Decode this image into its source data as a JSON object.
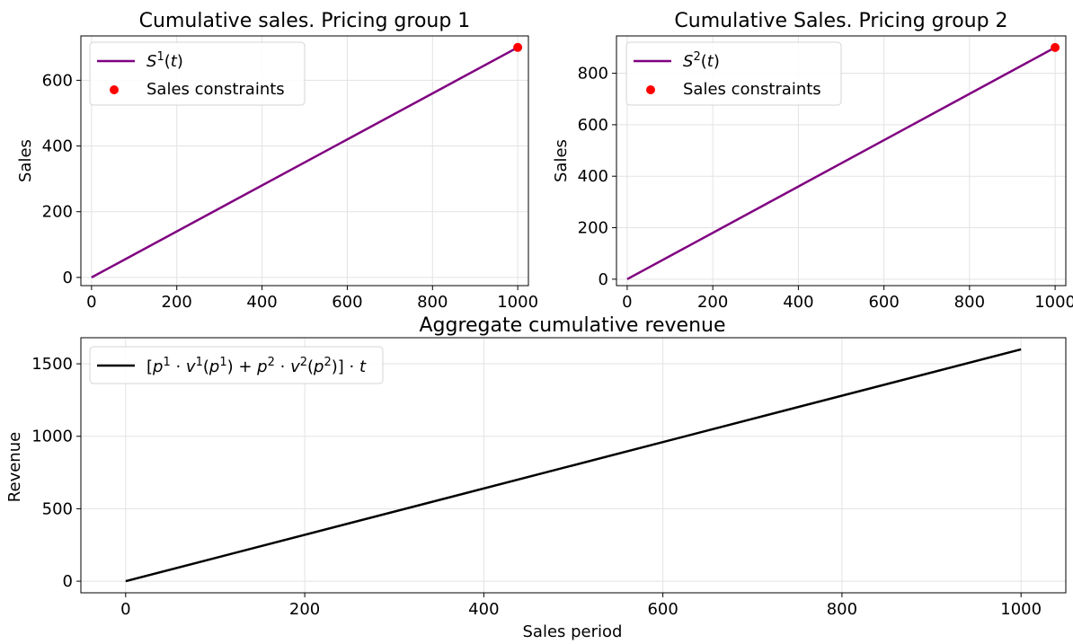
{
  "chart_data": [
    {
      "type": "line",
      "title": "Cumulative sales. Pricing group 1",
      "xlabel": "",
      "ylabel": "Sales",
      "xlim": [
        -25,
        1025
      ],
      "ylim": [
        -25,
        735
      ],
      "xticks": [
        0,
        200,
        400,
        600,
        800,
        1000
      ],
      "yticks": [
        0,
        200,
        400,
        600
      ],
      "grid": true,
      "legend_position": "top-left",
      "series": [
        {
          "name": "S¹(t)",
          "type": "line",
          "color": "#800080",
          "x": [
            0,
            1000
          ],
          "y": [
            0,
            700
          ]
        },
        {
          "name": "Sales constraints",
          "type": "scatter",
          "color": "#ff0000",
          "x": [
            1000
          ],
          "y": [
            700
          ]
        }
      ]
    },
    {
      "type": "line",
      "title": "Cumulative Sales. Pricing group 2",
      "xlabel": "",
      "ylabel": "Sales",
      "xlim": [
        -25,
        1025
      ],
      "ylim": [
        -25,
        945
      ],
      "xticks": [
        0,
        200,
        400,
        600,
        800,
        1000
      ],
      "yticks": [
        0,
        200,
        400,
        600,
        800
      ],
      "grid": true,
      "legend_position": "top-left",
      "series": [
        {
          "name": "S²(t)",
          "type": "line",
          "color": "#800080",
          "x": [
            0,
            1000
          ],
          "y": [
            0,
            900
          ]
        },
        {
          "name": "Sales constraints",
          "type": "scatter",
          "color": "#ff0000",
          "x": [
            1000
          ],
          "y": [
            900
          ]
        }
      ]
    },
    {
      "type": "line",
      "title": "Aggregate cumulative revenue",
      "xlabel": "Sales period",
      "ylabel": "Revenue",
      "xlim": [
        -50,
        1050
      ],
      "ylim": [
        -80,
        1680
      ],
      "xticks": [
        0,
        200,
        400,
        600,
        800,
        1000
      ],
      "yticks": [
        0,
        500,
        1000,
        1500
      ],
      "grid": true,
      "legend_position": "top-left",
      "series": [
        {
          "name": "[p¹·v¹(p¹) + p²·v²(p²)]·t",
          "type": "line",
          "color": "#000000",
          "x": [
            0,
            1000
          ],
          "y": [
            0,
            1600
          ]
        }
      ]
    }
  ]
}
